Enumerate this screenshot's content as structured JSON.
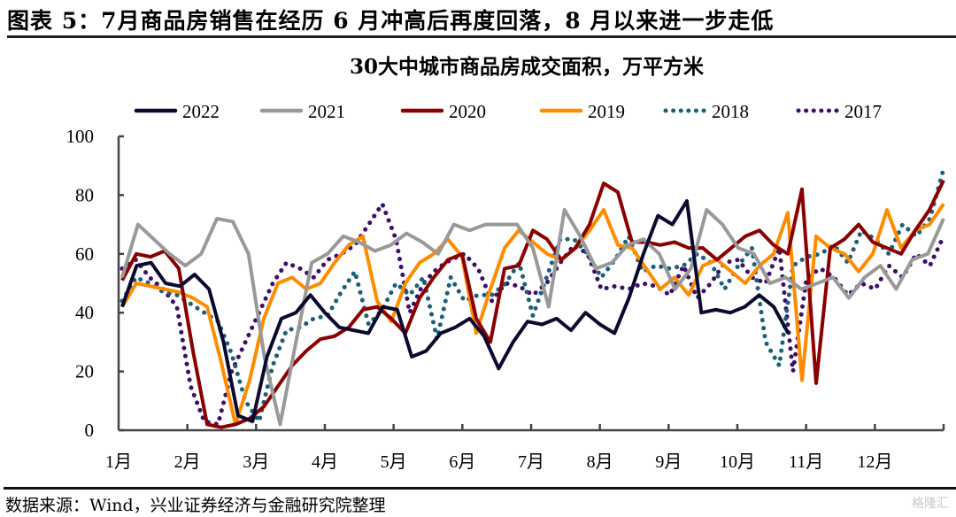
{
  "figure": {
    "title": "图表 5：7月商品房销售在经历 6 月冲高后再度回落，8 月以来进一步走低",
    "source": "数据来源：Wind，兴业证券经济与金融研究院整理",
    "watermark": "格隆汇"
  },
  "chart_data": {
    "type": "line",
    "title": "30大中城市商品房成交面积，万平方米",
    "xlabel": "",
    "ylabel": "",
    "ylim": [
      0,
      100
    ],
    "yticks": [
      "0",
      "20",
      "40",
      "60",
      "80",
      "100"
    ],
    "x_tick_labels": [
      "1月",
      "2月",
      "3月",
      "4月",
      "5月",
      "6月",
      "7月",
      "8月",
      "9月",
      "10月",
      "11月",
      "12月"
    ],
    "x_unit": "week of year (0–52)",
    "legend_position": "top",
    "grid": false,
    "series": [
      {
        "name": "2022",
        "color": "#0a0a30",
        "style": "solid",
        "values": [
          42,
          56,
          57,
          50,
          49,
          53,
          48,
          30,
          5,
          3,
          25,
          38,
          40,
          46,
          40,
          35,
          34,
          33,
          42,
          41,
          25,
          27,
          33,
          35,
          38,
          32,
          21,
          30,
          37,
          36,
          38,
          34,
          40,
          36,
          33,
          45,
          60,
          73,
          70,
          78,
          40,
          41,
          40,
          42,
          46,
          42,
          33
        ]
      },
      {
        "name": "2021",
        "color": "#999999",
        "style": "solid",
        "values": [
          52,
          70,
          65,
          60,
          56,
          60,
          72,
          71,
          60,
          25,
          2,
          30,
          57,
          60,
          66,
          64,
          61,
          63,
          67,
          64,
          60,
          70,
          68,
          70,
          70,
          70,
          62,
          42,
          75,
          66,
          55,
          57,
          63,
          65,
          60,
          48,
          55,
          75,
          70,
          62,
          60,
          50,
          52,
          48,
          50,
          52,
          45,
          52,
          56,
          48,
          58,
          60,
          72
        ]
      },
      {
        "name": "2020",
        "color": "#8b0000",
        "style": "solid",
        "values": [
          51,
          60,
          59,
          61,
          55,
          27,
          2,
          1,
          2,
          4,
          8,
          15,
          22,
          27,
          31,
          32,
          35,
          41,
          42,
          38,
          33,
          45,
          52,
          58,
          60,
          38,
          30,
          55,
          56,
          68,
          65,
          58,
          62,
          70,
          84,
          81,
          64,
          64,
          63,
          64,
          62,
          62,
          58,
          62,
          66,
          68,
          63,
          60,
          82,
          16,
          62,
          65,
          70,
          64,
          62,
          60,
          68,
          75,
          85
        ]
      },
      {
        "name": "2019",
        "color": "#ff8c00",
        "style": "solid",
        "values": [
          42,
          50,
          49,
          48,
          47,
          45,
          42,
          23,
          2,
          17,
          38,
          50,
          52,
          48,
          50,
          57,
          63,
          66,
          44,
          37,
          50,
          57,
          60,
          65,
          59,
          33,
          48,
          62,
          68,
          64,
          60,
          58,
          62,
          68,
          75,
          63,
          62,
          55,
          48,
          52,
          46,
          56,
          58,
          54,
          50,
          56,
          60,
          74,
          17,
          66,
          62,
          60,
          54,
          60,
          75,
          62,
          68,
          70,
          77
        ]
      },
      {
        "name": "2018",
        "color": "#1a6078",
        "style": "dotted",
        "values": [
          44,
          52,
          50,
          47,
          46,
          43,
          40,
          37,
          26,
          10,
          3,
          22,
          34,
          35,
          38,
          39,
          47,
          54,
          36,
          41,
          50,
          46,
          52,
          31,
          52,
          44,
          46,
          46,
          50,
          57,
          39,
          52,
          65,
          65,
          60,
          52,
          58,
          66,
          54,
          56,
          55,
          56,
          60,
          57,
          48,
          56,
          62,
          30,
          22,
          56,
          59,
          60,
          63,
          57,
          68,
          65,
          60,
          70,
          66,
          72,
          89
        ]
      },
      {
        "name": "2017",
        "color": "#3d0e6b",
        "style": "dotted",
        "values": [
          55,
          58,
          52,
          48,
          42,
          15,
          3,
          2,
          20,
          30,
          40,
          50,
          57,
          55,
          52,
          58,
          60,
          63,
          70,
          77,
          65,
          40,
          50,
          55,
          58,
          60,
          55,
          44,
          50,
          49,
          46,
          50,
          57,
          63,
          60,
          48,
          49,
          48,
          50,
          49,
          46,
          56,
          45,
          50,
          57,
          58,
          52,
          50,
          62,
          20,
          52,
          55,
          52,
          46,
          50,
          48,
          56,
          52,
          60,
          56,
          66
        ]
      }
    ]
  }
}
